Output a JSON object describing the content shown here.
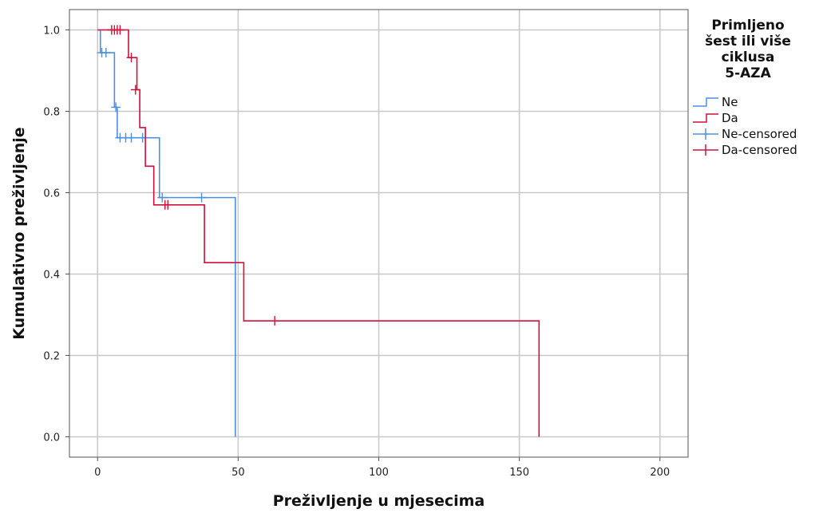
{
  "chart_data": {
    "type": "line",
    "subtype": "kaplan-meier",
    "xlabel": "Preživljenje u mjesecima",
    "ylabel": "Kumulativno preživljenje",
    "xlim": [
      -10,
      210
    ],
    "ylim": [
      -0.05,
      1.05
    ],
    "x_ticks": [
      0,
      50,
      100,
      150,
      200
    ],
    "y_ticks": [
      0.0,
      0.2,
      0.4,
      0.6,
      0.8,
      1.0
    ],
    "y_tick_labels": [
      "0.0",
      "0.2",
      "0.4",
      "0.6",
      "0.8",
      "1.0"
    ],
    "grid": true,
    "legend": {
      "placement": "right",
      "title_lines": [
        "Primljeno",
        "šest ili više",
        "ciklusa",
        "5-AZA"
      ],
      "entries": [
        "Ne",
        "Da",
        "Ne-censored",
        "Da-censored"
      ]
    },
    "series": [
      {
        "name": "Ne",
        "color": "#4a90e2",
        "steps": [
          [
            0,
            1.0
          ],
          [
            1,
            0.944
          ],
          [
            6,
            0.81
          ],
          [
            7,
            0.735
          ],
          [
            22,
            0.588
          ],
          [
            49,
            0.0
          ]
        ],
        "censored": [
          [
            1.5,
            0.944
          ],
          [
            3,
            0.944
          ],
          [
            6.5,
            0.81
          ],
          [
            8,
            0.735
          ],
          [
            10,
            0.735
          ],
          [
            12,
            0.735
          ],
          [
            16,
            0.735
          ],
          [
            23,
            0.588
          ],
          [
            37,
            0.588
          ]
        ]
      },
      {
        "name": "Da",
        "color": "#d0103a",
        "steps": [
          [
            0,
            1.0
          ],
          [
            11,
            0.932
          ],
          [
            14,
            0.853
          ],
          [
            15,
            0.76
          ],
          [
            17,
            0.665
          ],
          [
            20,
            0.57
          ],
          [
            38,
            0.428
          ],
          [
            52,
            0.285
          ],
          [
            157,
            0.0
          ]
        ],
        "censored": [
          [
            5,
            1.0
          ],
          [
            6,
            1.0
          ],
          [
            7,
            1.0
          ],
          [
            8,
            1.0
          ],
          [
            12,
            0.932
          ],
          [
            13.5,
            0.853
          ],
          [
            24,
            0.57
          ],
          [
            25,
            0.57
          ],
          [
            63,
            0.285
          ]
        ]
      }
    ]
  }
}
